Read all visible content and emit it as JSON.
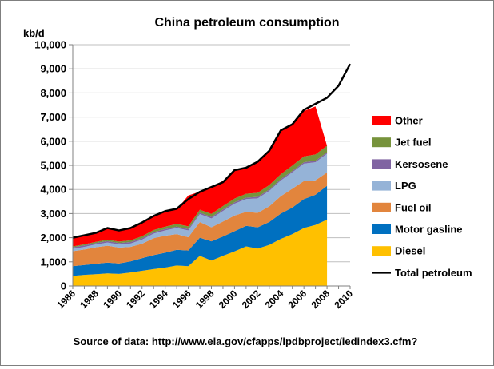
{
  "chart_data": {
    "type": "area",
    "title": "China petroleum consumption",
    "ylabel": "kb/d",
    "source": "Source of data: http://www.eia.gov/cfapps/ipdbproject/iedindex3.cfm?",
    "ylim": [
      0,
      10000
    ],
    "xlim": [
      1986,
      2010
    ],
    "y_ticks": [
      0,
      1000,
      2000,
      3000,
      4000,
      5000,
      6000,
      7000,
      8000,
      9000,
      10000
    ],
    "y_tick_labels": [
      "0",
      "1,000",
      "2,000",
      "3,000",
      "4,000",
      "5,000",
      "6,000",
      "7,000",
      "8,000",
      "9,000",
      "10,000"
    ],
    "x_tick_labels": [
      "1986",
      "1988",
      "1990",
      "1992",
      "1994",
      "1996",
      "1998",
      "2000",
      "2002",
      "2004",
      "2006",
      "2008",
      "2010"
    ],
    "grid": true,
    "legend_position": "right",
    "stack_x": [
      1986,
      1987,
      1988,
      1989,
      1990,
      1991,
      1992,
      1993,
      1994,
      1995,
      1996,
      1997,
      1998,
      1999,
      2000,
      2001,
      2002,
      2003,
      2004,
      2005,
      2006,
      2007,
      2008
    ],
    "series": [
      {
        "name": "Diesel",
        "color": "#FFC000",
        "values": [
          420,
          460,
          490,
          520,
          500,
          560,
          630,
          700,
          760,
          850,
          820,
          1250,
          1050,
          1250,
          1430,
          1640,
          1550,
          1700,
          1950,
          2150,
          2400,
          2530,
          2750
        ]
      },
      {
        "name": "Motor gasline",
        "color": "#0070C0",
        "values": [
          400,
          410,
          430,
          450,
          430,
          460,
          520,
          580,
          620,
          650,
          650,
          750,
          800,
          800,
          840,
          850,
          880,
          950,
          1050,
          1100,
          1200,
          1250,
          1400
        ]
      },
      {
        "name": "Fuel oil",
        "color": "#E2853D",
        "values": [
          620,
          640,
          680,
          700,
          660,
          600,
          600,
          700,
          700,
          650,
          550,
          650,
          580,
          620,
          650,
          580,
          600,
          650,
          720,
          780,
          750,
          600,
          550
        ]
      },
      {
        "name": "LPG",
        "color": "#95B3D7",
        "values": [
          100,
          110,
          120,
          130,
          130,
          140,
          170,
          190,
          220,
          250,
          280,
          330,
          370,
          440,
          490,
          530,
          600,
          640,
          650,
          680,
          720,
          750,
          780
        ]
      },
      {
        "name": "Kersosene",
        "color": "#8064A2",
        "values": [
          60,
          60,
          60,
          60,
          60,
          60,
          60,
          60,
          60,
          60,
          60,
          60,
          60,
          60,
          60,
          60,
          60,
          60,
          60,
          60,
          60,
          60,
          60
        ]
      },
      {
        "name": "Jet fuel",
        "color": "#77933C",
        "values": [
          40,
          45,
          50,
          55,
          60,
          70,
          80,
          90,
          100,
          110,
          110,
          120,
          130,
          140,
          150,
          160,
          170,
          180,
          200,
          220,
          240,
          260,
          270
        ]
      },
      {
        "name": "Other",
        "color": "#FF0000",
        "values": [
          390,
          375,
          370,
          485,
          460,
          510,
          570,
          600,
          640,
          600,
          1280,
          750,
          1110,
          1050,
          1180,
          1080,
          1290,
          1470,
          1870,
          1710,
          1880,
          1990,
          0
        ]
      }
    ],
    "total": {
      "name": "Total petroleum",
      "color": "#000000",
      "x": [
        1986,
        1987,
        1988,
        1989,
        1990,
        1991,
        1992,
        1993,
        1994,
        1995,
        1996,
        1997,
        1998,
        1999,
        2000,
        2001,
        2002,
        2003,
        2004,
        2005,
        2006,
        2007,
        2008,
        2009,
        2010
      ],
      "values": [
        2000,
        2100,
        2200,
        2400,
        2300,
        2400,
        2630,
        2900,
        3100,
        3200,
        3600,
        3900,
        4100,
        4300,
        4800,
        4900,
        5150,
        5600,
        6450,
        6700,
        7300,
        7550,
        7800,
        8300,
        9200
      ]
    },
    "legend_order": [
      "Other",
      "Jet fuel",
      "Kersosene",
      "LPG",
      "Fuel oil",
      "Motor gasline",
      "Diesel",
      "Total petroleum"
    ]
  }
}
